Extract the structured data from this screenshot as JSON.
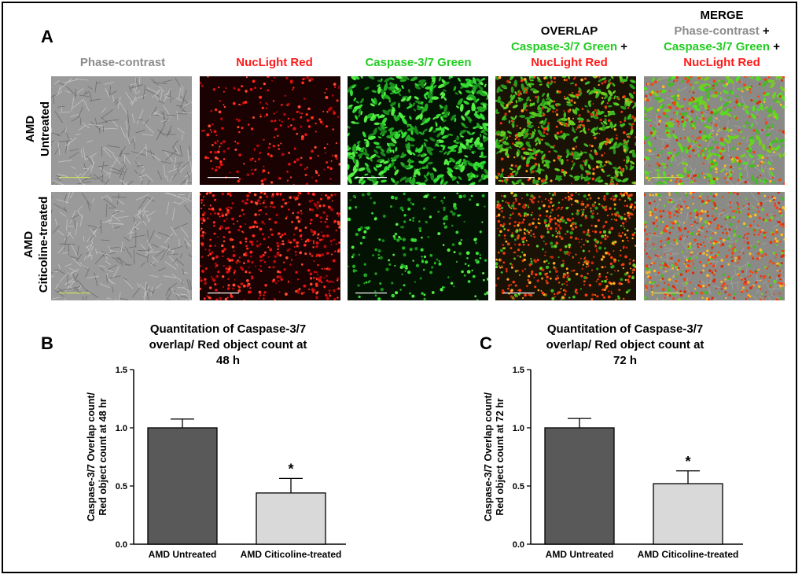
{
  "panel_letters": {
    "a": "A",
    "b": "B",
    "c": "C"
  },
  "columns": [
    {
      "lines": [
        [
          {
            "text": "Phase-contrast",
            "color": "gray"
          }
        ]
      ]
    },
    {
      "lines": [
        [
          {
            "text": "NucLight Red",
            "color": "red"
          }
        ]
      ]
    },
    {
      "lines": [
        [
          {
            "text": "Caspase-3/7 Green",
            "color": "green"
          }
        ]
      ]
    },
    {
      "lines": [
        [
          {
            "text": "OVERLAP",
            "color": "black"
          }
        ],
        [
          {
            "text": "Caspase-3/7 Green",
            "color": "green"
          },
          {
            "text": " +",
            "color": "black"
          }
        ],
        [
          {
            "text": "NucLight Red",
            "color": "red"
          }
        ]
      ]
    },
    {
      "lines": [
        [
          {
            "text": "MERGE",
            "color": "black"
          }
        ],
        [
          {
            "text": "Phase-contrast",
            "color": "gray"
          },
          {
            "text": " +",
            "color": "black"
          }
        ],
        [
          {
            "text": "Caspase-3/7 Green",
            "color": "green"
          },
          {
            "text": " +",
            "color": "black"
          }
        ],
        [
          {
            "text": "NucLight Red",
            "color": "red"
          }
        ]
      ]
    }
  ],
  "rows": [
    {
      "line1": "AMD",
      "line2": "Untreated"
    },
    {
      "line1": "AMD",
      "line2": "Citicoline-treated"
    }
  ],
  "colors": {
    "gray": "#8c8c8c",
    "red": "#ff1a1a",
    "green": "#22cc22",
    "black": "#000000",
    "bar_dark": "#595959",
    "bar_light": "#d9d9d9"
  },
  "chart_data": [
    {
      "type": "bar",
      "title_lines": [
        "Quantitation of Caspase-3/7",
        "overlap/ Red object count at",
        "48 h"
      ],
      "ylabel_lines": [
        "Caspase-3/7 Overlap count/",
        "Red object count at 48 hr"
      ],
      "categories": [
        "AMD Untreated",
        "AMD Citicoline-treated"
      ],
      "values": [
        1.0,
        0.44
      ],
      "errors": [
        0.075,
        0.125
      ],
      "annotations": [
        "",
        "*"
      ],
      "ylim": [
        0,
        1.5
      ],
      "yticks": [
        "0.0",
        "0.5",
        "1.0",
        "1.5"
      ],
      "bar_colors": [
        "#595959",
        "#d9d9d9"
      ],
      "grid": false
    },
    {
      "type": "bar",
      "title_lines": [
        "Quantitation of Caspase-3/7",
        "overlap/ Red object count at",
        "72 h"
      ],
      "ylabel_lines": [
        "Caspase-3/7 Overlap count/",
        "Red object count at 72 hr"
      ],
      "categories": [
        "AMD Untreated",
        "AMD Citicoline-treated"
      ],
      "values": [
        1.0,
        0.52
      ],
      "errors": [
        0.08,
        0.11
      ],
      "annotations": [
        "",
        "*"
      ],
      "ylim": [
        0,
        1.5
      ],
      "yticks": [
        "0.0",
        "0.5",
        "1.0",
        "1.5"
      ],
      "bar_colors": [
        "#595959",
        "#d9d9d9"
      ],
      "grid": false
    }
  ]
}
